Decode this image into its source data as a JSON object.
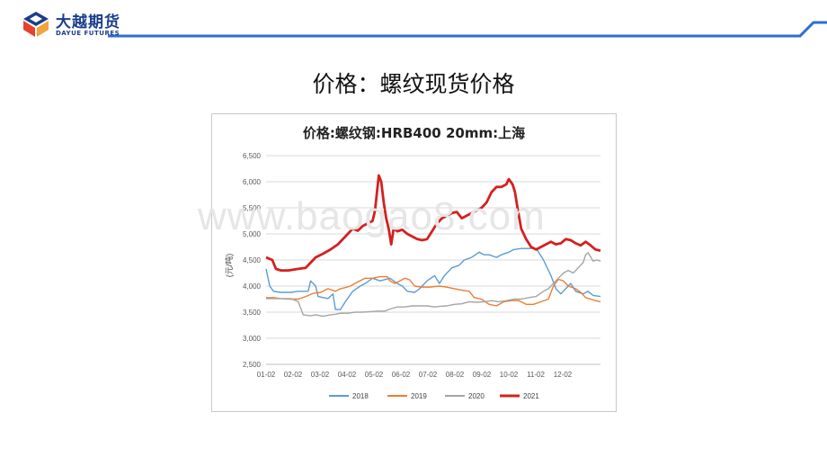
{
  "header": {
    "brand_cn": "大越期货",
    "brand_en": "DAYUE FUTURES",
    "logo_icon": "dayue-logo-icon",
    "accent_color": "#1a3e8c",
    "line_color": "#2e6dd6"
  },
  "page_title": "价格：螺纹现货价格",
  "watermark": "www.baogao8.com",
  "chart_data": {
    "type": "line",
    "title": "价格:螺纹钢:HRB400 20mm:上海",
    "ylabel": "(元/吨)",
    "xlabel": "",
    "ylim": [
      2500,
      6500
    ],
    "yticks": [
      "2,500",
      "3,000",
      "3,500",
      "4,000",
      "4,500",
      "5,000",
      "5,500",
      "6,000",
      "6,500"
    ],
    "yticks_values": [
      2500,
      3000,
      3500,
      4000,
      4500,
      5000,
      5500,
      6000,
      6500
    ],
    "xticks": [
      "01-02",
      "02-02",
      "03-02",
      "04-02",
      "05-02",
      "06-02",
      "07-02",
      "08-02",
      "09-02",
      "10-02",
      "11-02",
      "12-02"
    ],
    "grid": "horizontal",
    "legend_position": "bottom",
    "series": [
      {
        "name": "2018",
        "color": "#5b9bd5",
        "width": 1.4,
        "points": [
          [
            0.0,
            4330
          ],
          [
            0.15,
            4000
          ],
          [
            0.3,
            3900
          ],
          [
            0.6,
            3880
          ],
          [
            1.0,
            3880
          ],
          [
            1.3,
            3900
          ],
          [
            1.7,
            3900
          ],
          [
            1.8,
            4100
          ],
          [
            2.0,
            4000
          ],
          [
            2.1,
            3800
          ],
          [
            2.5,
            3760
          ],
          [
            2.7,
            3850
          ],
          [
            2.8,
            3550
          ],
          [
            3.0,
            3550
          ],
          [
            3.2,
            3700
          ],
          [
            3.5,
            3900
          ],
          [
            3.8,
            4000
          ],
          [
            4.0,
            4050
          ],
          [
            4.3,
            4150
          ],
          [
            4.6,
            4100
          ],
          [
            5.0,
            4150
          ],
          [
            5.3,
            4050
          ],
          [
            5.5,
            4000
          ],
          [
            5.7,
            3900
          ],
          [
            6.0,
            3880
          ],
          [
            6.2,
            3950
          ],
          [
            6.5,
            4100
          ],
          [
            6.8,
            4200
          ],
          [
            7.0,
            4050
          ],
          [
            7.2,
            4200
          ],
          [
            7.5,
            4350
          ],
          [
            7.8,
            4400
          ],
          [
            8.0,
            4500
          ],
          [
            8.3,
            4550
          ],
          [
            8.6,
            4650
          ],
          [
            8.8,
            4600
          ],
          [
            9.0,
            4600
          ],
          [
            9.3,
            4550
          ],
          [
            9.5,
            4600
          ],
          [
            9.8,
            4650
          ],
          [
            10.0,
            4700
          ],
          [
            10.3,
            4720
          ],
          [
            10.6,
            4720
          ],
          [
            10.9,
            4720
          ],
          [
            11.0,
            4650
          ],
          [
            11.2,
            4500
          ],
          [
            11.5,
            4200
          ],
          [
            11.7,
            3950
          ],
          [
            11.9,
            3850
          ],
          [
            12.1,
            3950
          ],
          [
            12.3,
            4050
          ],
          [
            12.5,
            3900
          ],
          [
            12.8,
            3850
          ],
          [
            13.0,
            3900
          ],
          [
            13.2,
            3820
          ],
          [
            13.5,
            3800
          ]
        ]
      },
      {
        "name": "2019",
        "color": "#ed7d31",
        "width": 1.4,
        "points": [
          [
            0.0,
            3780
          ],
          [
            0.3,
            3780
          ],
          [
            0.6,
            3760
          ],
          [
            1.0,
            3750
          ],
          [
            1.3,
            3750
          ],
          [
            1.6,
            3800
          ],
          [
            1.9,
            3860
          ],
          [
            2.2,
            3880
          ],
          [
            2.5,
            3950
          ],
          [
            2.8,
            3900
          ],
          [
            3.0,
            3950
          ],
          [
            3.2,
            3970
          ],
          [
            3.4,
            4000
          ],
          [
            3.7,
            4080
          ],
          [
            4.0,
            4150
          ],
          [
            4.3,
            4150
          ],
          [
            4.6,
            4180
          ],
          [
            4.9,
            4180
          ],
          [
            5.0,
            4100
          ],
          [
            5.2,
            4050
          ],
          [
            5.4,
            4100
          ],
          [
            5.6,
            4150
          ],
          [
            5.8,
            4120
          ],
          [
            6.0,
            4000
          ],
          [
            6.3,
            3980
          ],
          [
            6.6,
            3980
          ],
          [
            7.0,
            4000
          ],
          [
            7.3,
            3980
          ],
          [
            7.6,
            3950
          ],
          [
            7.9,
            3920
          ],
          [
            8.2,
            3900
          ],
          [
            8.4,
            3780
          ],
          [
            8.7,
            3750
          ],
          [
            9.0,
            3650
          ],
          [
            9.3,
            3620
          ],
          [
            9.6,
            3700
          ],
          [
            9.9,
            3720
          ],
          [
            10.2,
            3720
          ],
          [
            10.5,
            3650
          ],
          [
            10.8,
            3650
          ],
          [
            11.1,
            3700
          ],
          [
            11.4,
            3750
          ],
          [
            11.6,
            4000
          ],
          [
            11.8,
            4130
          ],
          [
            12.0,
            4100
          ],
          [
            12.2,
            4000
          ],
          [
            12.5,
            3950
          ],
          [
            12.7,
            3880
          ],
          [
            12.9,
            3780
          ],
          [
            13.1,
            3750
          ],
          [
            13.3,
            3720
          ],
          [
            13.5,
            3700
          ]
        ]
      },
      {
        "name": "2020",
        "color": "#a5a5a5",
        "width": 1.4,
        "points": [
          [
            0.0,
            3760
          ],
          [
            0.3,
            3760
          ],
          [
            0.6,
            3760
          ],
          [
            1.0,
            3760
          ],
          [
            1.3,
            3700
          ],
          [
            1.5,
            3450
          ],
          [
            1.8,
            3430
          ],
          [
            2.0,
            3450
          ],
          [
            2.3,
            3420
          ],
          [
            2.6,
            3450
          ],
          [
            2.8,
            3460
          ],
          [
            3.0,
            3480
          ],
          [
            3.3,
            3480
          ],
          [
            3.6,
            3500
          ],
          [
            3.9,
            3500
          ],
          [
            4.2,
            3510
          ],
          [
            4.5,
            3520
          ],
          [
            4.8,
            3520
          ],
          [
            5.0,
            3560
          ],
          [
            5.3,
            3600
          ],
          [
            5.6,
            3600
          ],
          [
            5.9,
            3620
          ],
          [
            6.2,
            3620
          ],
          [
            6.5,
            3620
          ],
          [
            6.8,
            3600
          ],
          [
            7.0,
            3610
          ],
          [
            7.3,
            3620
          ],
          [
            7.6,
            3650
          ],
          [
            7.9,
            3660
          ],
          [
            8.2,
            3700
          ],
          [
            8.5,
            3690
          ],
          [
            8.8,
            3700
          ],
          [
            9.1,
            3720
          ],
          [
            9.4,
            3700
          ],
          [
            9.7,
            3720
          ],
          [
            10.0,
            3750
          ],
          [
            10.3,
            3750
          ],
          [
            10.6,
            3780
          ],
          [
            10.9,
            3800
          ],
          [
            11.2,
            3900
          ],
          [
            11.4,
            3950
          ],
          [
            11.6,
            4050
          ],
          [
            11.8,
            4150
          ],
          [
            12.0,
            4250
          ],
          [
            12.2,
            4300
          ],
          [
            12.4,
            4250
          ],
          [
            12.6,
            4350
          ],
          [
            12.8,
            4450
          ],
          [
            12.9,
            4600
          ],
          [
            13.0,
            4640
          ],
          [
            13.1,
            4560
          ],
          [
            13.2,
            4480
          ],
          [
            13.35,
            4500
          ],
          [
            13.5,
            4480
          ]
        ]
      },
      {
        "name": "2021",
        "color": "#d42020",
        "width": 2.8,
        "points": [
          [
            0.0,
            4550
          ],
          [
            0.25,
            4500
          ],
          [
            0.4,
            4330
          ],
          [
            0.6,
            4300
          ],
          [
            0.9,
            4300
          ],
          [
            1.3,
            4330
          ],
          [
            1.6,
            4350
          ],
          [
            1.8,
            4450
          ],
          [
            2.0,
            4550
          ],
          [
            2.3,
            4620
          ],
          [
            2.6,
            4700
          ],
          [
            2.9,
            4800
          ],
          [
            3.2,
            4950
          ],
          [
            3.5,
            5100
          ],
          [
            3.7,
            5060
          ],
          [
            3.9,
            5150
          ],
          [
            4.1,
            5200
          ],
          [
            4.3,
            5250
          ],
          [
            4.4,
            5450
          ],
          [
            4.5,
            5900
          ],
          [
            4.55,
            6120
          ],
          [
            4.65,
            6000
          ],
          [
            4.75,
            5600
          ],
          [
            4.85,
            5300
          ],
          [
            4.95,
            5100
          ],
          [
            5.05,
            4800
          ],
          [
            5.15,
            5100
          ],
          [
            5.3,
            5050
          ],
          [
            5.5,
            5080
          ],
          [
            5.7,
            5000
          ],
          [
            5.9,
            4950
          ],
          [
            6.1,
            4900
          ],
          [
            6.3,
            4880
          ],
          [
            6.5,
            4900
          ],
          [
            6.7,
            5050
          ],
          [
            6.9,
            5200
          ],
          [
            7.1,
            5300
          ],
          [
            7.3,
            5350
          ],
          [
            7.5,
            5400
          ],
          [
            7.7,
            5420
          ],
          [
            7.9,
            5300
          ],
          [
            8.1,
            5350
          ],
          [
            8.3,
            5400
          ],
          [
            8.5,
            5450
          ],
          [
            8.7,
            5500
          ],
          [
            8.9,
            5600
          ],
          [
            9.1,
            5800
          ],
          [
            9.3,
            5900
          ],
          [
            9.5,
            5900
          ],
          [
            9.7,
            5950
          ],
          [
            9.8,
            6050
          ],
          [
            9.95,
            5950
          ],
          [
            10.05,
            5800
          ],
          [
            10.15,
            5500
          ],
          [
            10.3,
            5100
          ],
          [
            10.5,
            4900
          ],
          [
            10.7,
            4750
          ],
          [
            10.9,
            4700
          ],
          [
            11.1,
            4750
          ],
          [
            11.3,
            4800
          ],
          [
            11.5,
            4850
          ],
          [
            11.7,
            4800
          ],
          [
            11.9,
            4820
          ],
          [
            12.1,
            4900
          ],
          [
            12.3,
            4880
          ],
          [
            12.5,
            4820
          ],
          [
            12.7,
            4780
          ],
          [
            12.9,
            4850
          ],
          [
            13.1,
            4780
          ],
          [
            13.3,
            4700
          ],
          [
            13.5,
            4680
          ]
        ]
      }
    ]
  }
}
